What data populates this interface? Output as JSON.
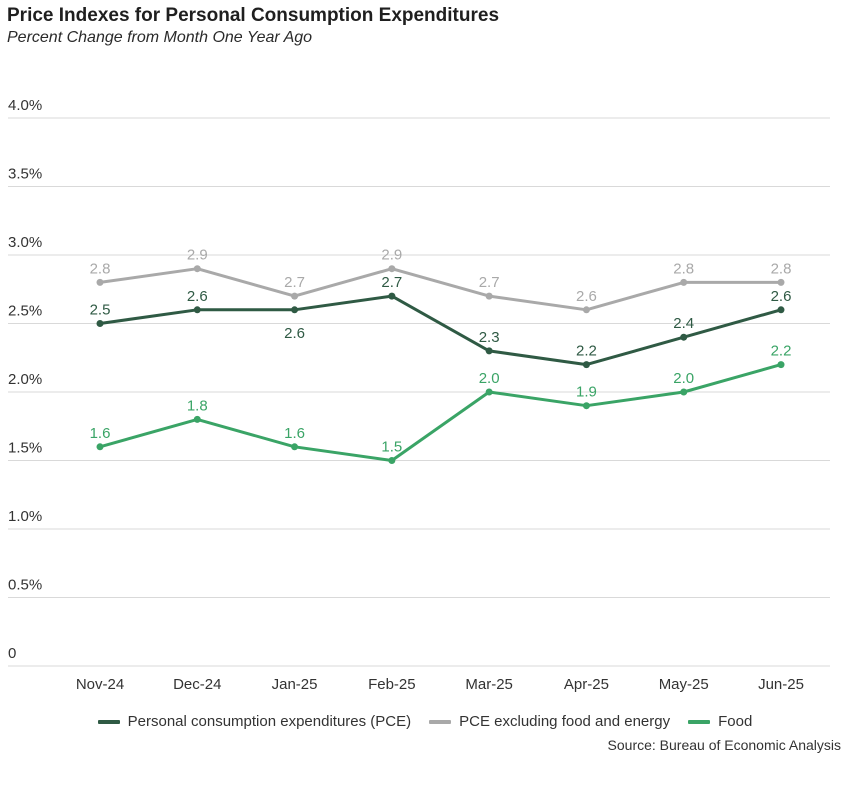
{
  "chart_data": {
    "type": "line",
    "title": "Price Indexes for Personal Consumption Expenditures",
    "subtitle": "Percent Change from Month One Year Ago",
    "xlabel": "",
    "ylabel": "",
    "categories": [
      "Nov-24",
      "Dec-24",
      "Jan-25",
      "Feb-25",
      "Mar-25",
      "Apr-25",
      "May-25",
      "Jun-25"
    ],
    "ylim": [
      0,
      4.0
    ],
    "yticks": [
      {
        "value": 0,
        "label": "0"
      },
      {
        "value": 0.5,
        "label": "0.5%"
      },
      {
        "value": 1.0,
        "label": "1.0%"
      },
      {
        "value": 1.5,
        "label": "1.5%"
      },
      {
        "value": 2.0,
        "label": "2.0%"
      },
      {
        "value": 2.5,
        "label": "2.5%"
      },
      {
        "value": 3.0,
        "label": "3.0%"
      },
      {
        "value": 3.5,
        "label": "3.5%"
      },
      {
        "value": 4.0,
        "label": "4.0%"
      }
    ],
    "grid": true,
    "legend_position": "bottom",
    "series": [
      {
        "name": "Personal consumption expenditures (PCE)",
        "color": "#2f5a44",
        "values": [
          2.5,
          2.6,
          2.6,
          2.7,
          2.3,
          2.2,
          2.4,
          2.6
        ],
        "label_positions": [
          "above",
          "above",
          "below",
          "above",
          "above",
          "above",
          "above",
          "above"
        ]
      },
      {
        "name": "PCE excluding food and energy",
        "color": "#a9a9a9",
        "values": [
          2.8,
          2.9,
          2.7,
          2.9,
          2.7,
          2.6,
          2.8,
          2.8
        ],
        "label_positions": [
          "above",
          "above",
          "above",
          "above",
          "above",
          "above",
          "above",
          "above"
        ]
      },
      {
        "name": "Food",
        "color": "#3aa466",
        "values": [
          1.6,
          1.8,
          1.6,
          1.5,
          2.0,
          1.9,
          2.0,
          2.2
        ],
        "label_positions": [
          "above",
          "above",
          "above",
          "above",
          "above",
          "above",
          "above",
          "above"
        ]
      }
    ],
    "source": "Source: Bureau of Economic Analysis"
  }
}
